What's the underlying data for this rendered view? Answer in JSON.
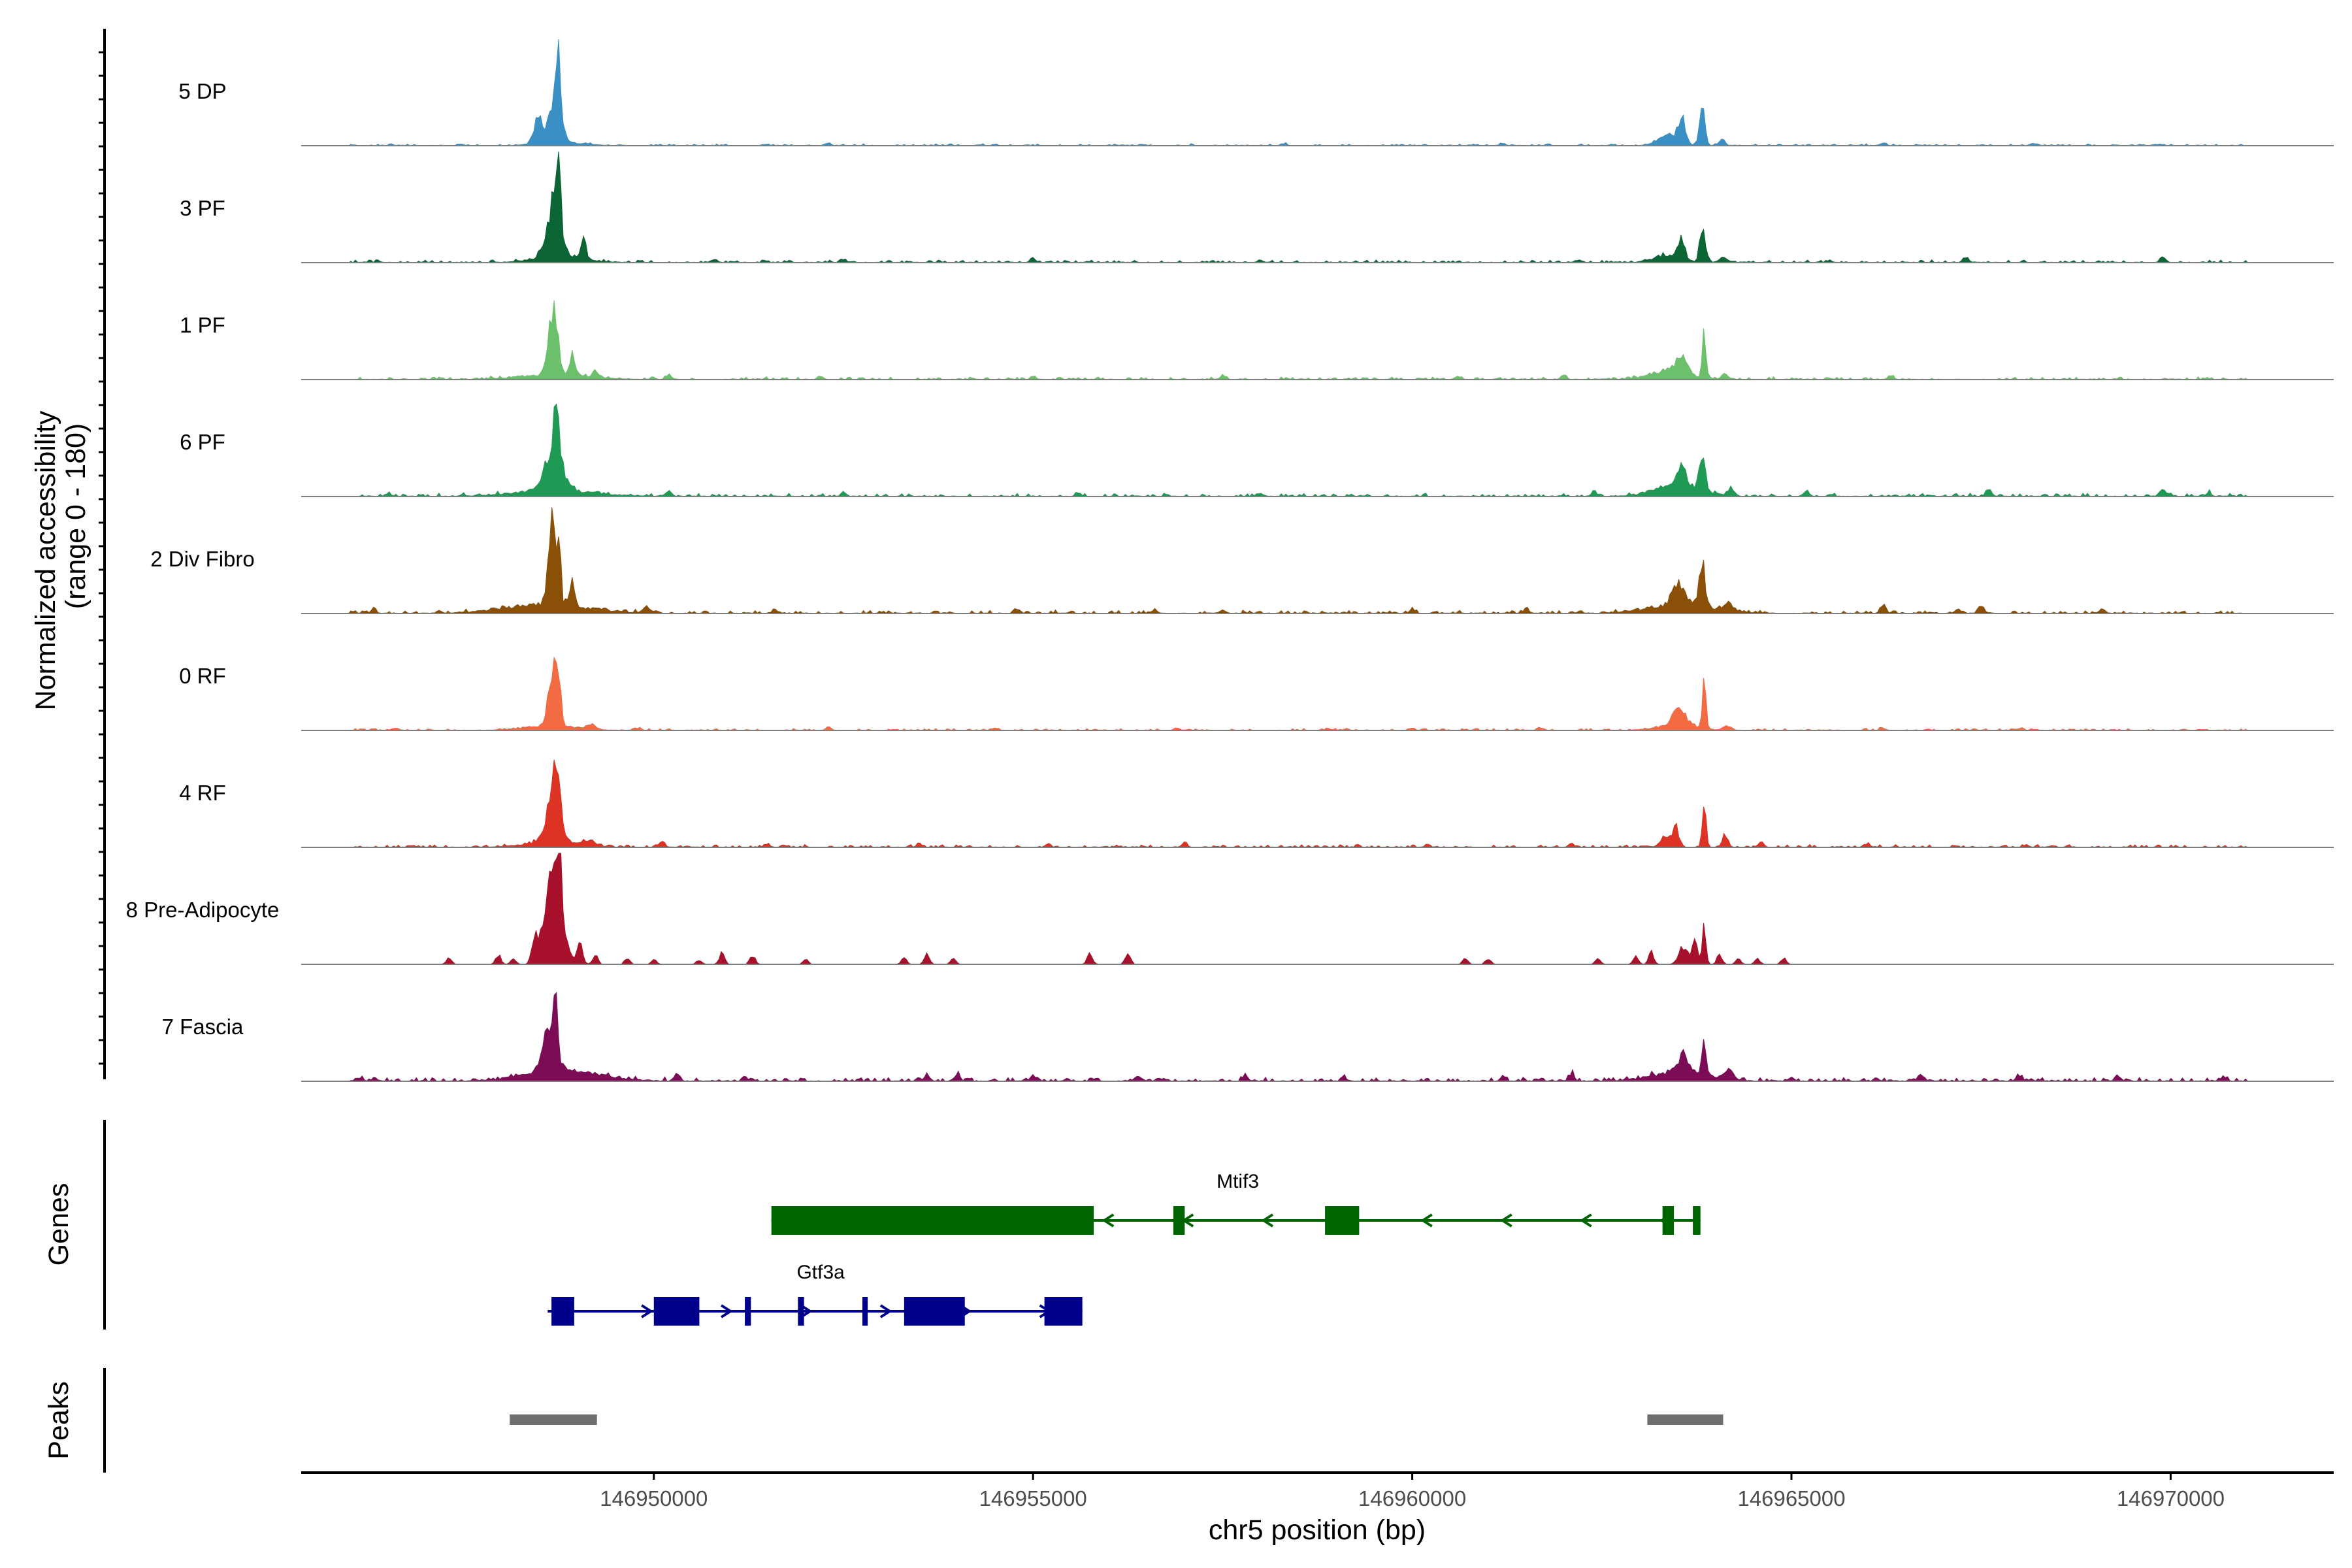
{
  "chart_data": {
    "type": "area",
    "title": "",
    "ylabel_line1": "Normalized accessibility",
    "ylabel_line2": "(range 0 - 180)",
    "xlabel": "chr5 position (bp)",
    "xlim": [
      146945350,
      146972150
    ],
    "ylim": [
      0,
      180
    ],
    "xticks": [
      {
        "value": 146950000,
        "label": "146950000"
      },
      {
        "value": 146955000,
        "label": "146955000"
      },
      {
        "value": 146960000,
        "label": "146960000"
      },
      {
        "value": 146965000,
        "label": "146965000"
      },
      {
        "value": 146970000,
        "label": "146970000"
      }
    ],
    "series": [
      {
        "name": "5 DP",
        "color": "#3A8FC4",
        "noise": 3,
        "peaks": [
          [
            146948200,
            146949350,
            6
          ],
          [
            146948550,
            146948850,
            80
          ],
          [
            146948700,
            146948800,
            80
          ],
          [
            146948350,
            146948600,
            40
          ],
          [
            146963100,
            146963600,
            18
          ],
          [
            146963450,
            146963650,
            45
          ],
          [
            146963750,
            146963900,
            60
          ],
          [
            146964000,
            146964150,
            10
          ]
        ],
        "blips": [
          [
            146952300,
            3
          ],
          [
            146958300,
            3
          ],
          [
            146961200,
            3
          ],
          [
            146966200,
            4
          ],
          [
            146968200,
            3
          ],
          [
            146969800,
            3
          ]
        ]
      },
      {
        "name": "3 PF",
        "color": "#0B6534",
        "noise": 4,
        "peaks": [
          [
            146948100,
            146949400,
            10
          ],
          [
            146948500,
            146948850,
            90
          ],
          [
            146948700,
            146948800,
            95
          ],
          [
            146949000,
            146949150,
            30
          ],
          [
            146963000,
            146963700,
            12
          ],
          [
            146963450,
            146963650,
            30
          ],
          [
            146963750,
            146963900,
            55
          ],
          [
            146964000,
            146964200,
            10
          ]
        ],
        "blips": [
          [
            146950800,
            6
          ],
          [
            146952500,
            4
          ],
          [
            146955000,
            5
          ],
          [
            146958000,
            4
          ],
          [
            146962200,
            4
          ],
          [
            146967300,
            10
          ],
          [
            146969900,
            10
          ]
        ]
      },
      {
        "name": "1 PF",
        "color": "#6CC06B",
        "noise": 4,
        "peaks": [
          [
            146947800,
            146949600,
            8
          ],
          [
            146948550,
            146948800,
            110
          ],
          [
            146948850,
            146949000,
            30
          ],
          [
            146949150,
            146949300,
            10
          ],
          [
            146962900,
            146963900,
            15
          ],
          [
            146963400,
            146963700,
            25
          ],
          [
            146963800,
            146963900,
            75
          ],
          [
            146964050,
            146964200,
            10
          ]
        ],
        "blips": [
          [
            146950200,
            8
          ],
          [
            146952200,
            6
          ],
          [
            146955000,
            5
          ],
          [
            146957500,
            5
          ],
          [
            146960600,
            5
          ],
          [
            146962000,
            6
          ],
          [
            146966300,
            6
          ]
        ]
      },
      {
        "name": "6 PF",
        "color": "#1E9A55",
        "noise": 5,
        "peaks": [
          [
            146947700,
            146949700,
            10
          ],
          [
            146948450,
            146948900,
            70
          ],
          [
            146948650,
            146948800,
            80
          ],
          [
            146962900,
            146964100,
            20
          ],
          [
            146963450,
            146963650,
            40
          ],
          [
            146963750,
            146963900,
            70
          ],
          [
            146964100,
            146964300,
            10
          ]
        ],
        "blips": [
          [
            146946500,
            6
          ],
          [
            146950200,
            8
          ],
          [
            146952500,
            6
          ],
          [
            146955600,
            6
          ],
          [
            146958000,
            6
          ],
          [
            146962400,
            6
          ],
          [
            146965200,
            10
          ],
          [
            146967600,
            12
          ],
          [
            146969900,
            12
          ],
          [
            146970500,
            6
          ]
        ]
      },
      {
        "name": "2 Div Fibro",
        "color": "#8B5008",
        "noise": 5,
        "peaks": [
          [
            146947500,
            146949700,
            15
          ],
          [
            146948550,
            146948750,
            135
          ],
          [
            146948700,
            146948800,
            100
          ],
          [
            146948850,
            146949000,
            40
          ],
          [
            146962700,
            146964400,
            15
          ],
          [
            146963350,
            146963700,
            35
          ],
          [
            146963750,
            146963900,
            80
          ],
          [
            146964050,
            146964300,
            12
          ]
        ],
        "blips": [
          [
            146946300,
            6
          ],
          [
            146949900,
            10
          ],
          [
            146951600,
            6
          ],
          [
            146954800,
            6
          ],
          [
            146956600,
            6
          ],
          [
            146957500,
            5
          ],
          [
            146960000,
            6
          ],
          [
            146961500,
            8
          ],
          [
            146966200,
            12
          ],
          [
            146967200,
            8
          ],
          [
            146967500,
            15
          ],
          [
            146969100,
            8
          ]
        ]
      },
      {
        "name": "0 RF",
        "color": "#F26B43",
        "noise": 3,
        "peaks": [
          [
            146948000,
            146949300,
            8
          ],
          [
            146948550,
            146948800,
            100
          ],
          [
            146948700,
            146948800,
            60
          ],
          [
            146949050,
            146949300,
            8
          ],
          [
            146963000,
            146964000,
            10
          ],
          [
            146963350,
            146963700,
            25
          ],
          [
            146963800,
            146963900,
            80
          ],
          [
            146964050,
            146964250,
            8
          ]
        ],
        "blips": [
          [
            146946600,
            4
          ],
          [
            146949800,
            4
          ],
          [
            146952300,
            4
          ],
          [
            146954500,
            3
          ],
          [
            146956900,
            3
          ],
          [
            146958900,
            3
          ],
          [
            146960000,
            4
          ],
          [
            146961700,
            3
          ],
          [
            146966200,
            3
          ],
          [
            146968000,
            3
          ]
        ]
      },
      {
        "name": "4 RF",
        "color": "#DC3324",
        "noise": 4,
        "peaks": [
          [
            146948000,
            146949300,
            10
          ],
          [
            146948500,
            146948850,
            75
          ],
          [
            146948650,
            146948800,
            75
          ],
          [
            146949000,
            146949300,
            10
          ],
          [
            146963200,
            146963500,
            20
          ],
          [
            146963400,
            146963550,
            30
          ],
          [
            146963800,
            146963900,
            75
          ],
          [
            146964050,
            146964200,
            20
          ]
        ],
        "blips": [
          [
            146950100,
            8
          ],
          [
            146951500,
            6
          ],
          [
            146953500,
            6
          ],
          [
            146955200,
            6
          ],
          [
            146957000,
            8
          ],
          [
            146960200,
            4
          ],
          [
            146962100,
            6
          ],
          [
            146964600,
            8
          ],
          [
            146966000,
            6
          ],
          [
            146968100,
            4
          ]
        ]
      },
      {
        "name": "8 Pre-Adipocyte",
        "color": "#A7112B",
        "noise": 0,
        "peaks": [
          [
            146948450,
            146948900,
            170
          ],
          [
            146948700,
            146948800,
            170
          ],
          [
            146948350,
            146948500,
            40
          ],
          [
            146948950,
            146949100,
            40
          ],
          [
            146949150,
            146949300,
            15
          ],
          [
            146963450,
            146963700,
            30
          ],
          [
            146963800,
            146963900,
            60
          ],
          [
            146963650,
            146963800,
            35
          ]
        ],
        "blips": [
          [
            146947300,
            12
          ],
          [
            146947950,
            15
          ],
          [
            146948150,
            10
          ],
          [
            146949650,
            10
          ],
          [
            146950000,
            8
          ],
          [
            146950600,
            8
          ],
          [
            146950900,
            20
          ],
          [
            146951300,
            15
          ],
          [
            146952000,
            8
          ],
          [
            146953300,
            10
          ],
          [
            146953600,
            20
          ],
          [
            146953950,
            10
          ],
          [
            146955750,
            20
          ],
          [
            146956250,
            20
          ],
          [
            146960700,
            10
          ],
          [
            146961000,
            10
          ],
          [
            146962450,
            10
          ],
          [
            146962950,
            15
          ],
          [
            146963150,
            20
          ],
          [
            146964050,
            15
          ],
          [
            146964300,
            10
          ],
          [
            146964550,
            10
          ],
          [
            146964900,
            10
          ]
        ]
      },
      {
        "name": "7 Fascia",
        "color": "#7D0C57",
        "noise": 6,
        "peaks": [
          [
            146947800,
            146949800,
            18
          ],
          [
            146948450,
            146948800,
            75
          ],
          [
            146948650,
            146948750,
            80
          ],
          [
            146962800,
            146964300,
            15
          ],
          [
            146963400,
            146963750,
            25
          ],
          [
            146963800,
            146963900,
            75
          ],
          [
            146964050,
            146964300,
            12
          ]
        ],
        "blips": [
          [
            146946100,
            6
          ],
          [
            146950300,
            12
          ],
          [
            146951200,
            8
          ],
          [
            146953600,
            12
          ],
          [
            146954000,
            10
          ],
          [
            146955000,
            8
          ],
          [
            146956400,
            8
          ],
          [
            146957800,
            8
          ],
          [
            146959100,
            6
          ],
          [
            146961200,
            8
          ],
          [
            146962100,
            12
          ],
          [
            146965000,
            6
          ],
          [
            146966700,
            10
          ],
          [
            146968000,
            8
          ],
          [
            146969300,
            10
          ],
          [
            146970700,
            8
          ]
        ]
      }
    ],
    "genes_label": "Genes",
    "genes": [
      {
        "name": "Mtif3",
        "strand": "-",
        "color": "#006400",
        "start": 146951550,
        "end": 146963800,
        "label_pos": 146957700,
        "exons": [
          [
            146951550,
            146955800
          ],
          [
            146956850,
            146957000
          ],
          [
            146958850,
            146959300
          ],
          [
            146963300,
            146963450
          ],
          [
            146963700,
            146963800
          ]
        ]
      },
      {
        "name": "Gtf3a",
        "strand": "+",
        "color": "#00008B",
        "start": 146948600,
        "end": 146955650,
        "label_pos": 146952200,
        "exons": [
          [
            146948650,
            146948950
          ],
          [
            146950000,
            146950600
          ],
          [
            146951200,
            146951280
          ],
          [
            146951900,
            146951980
          ],
          [
            146952750,
            146952820
          ],
          [
            146953300,
            146954100
          ],
          [
            146955150,
            146955650
          ]
        ]
      }
    ],
    "peaks_label": "Peaks",
    "peak_regions": [
      [
        146948100,
        146949250
      ],
      [
        146963100,
        146964100
      ]
    ],
    "peak_color": "#6E6E6E"
  }
}
